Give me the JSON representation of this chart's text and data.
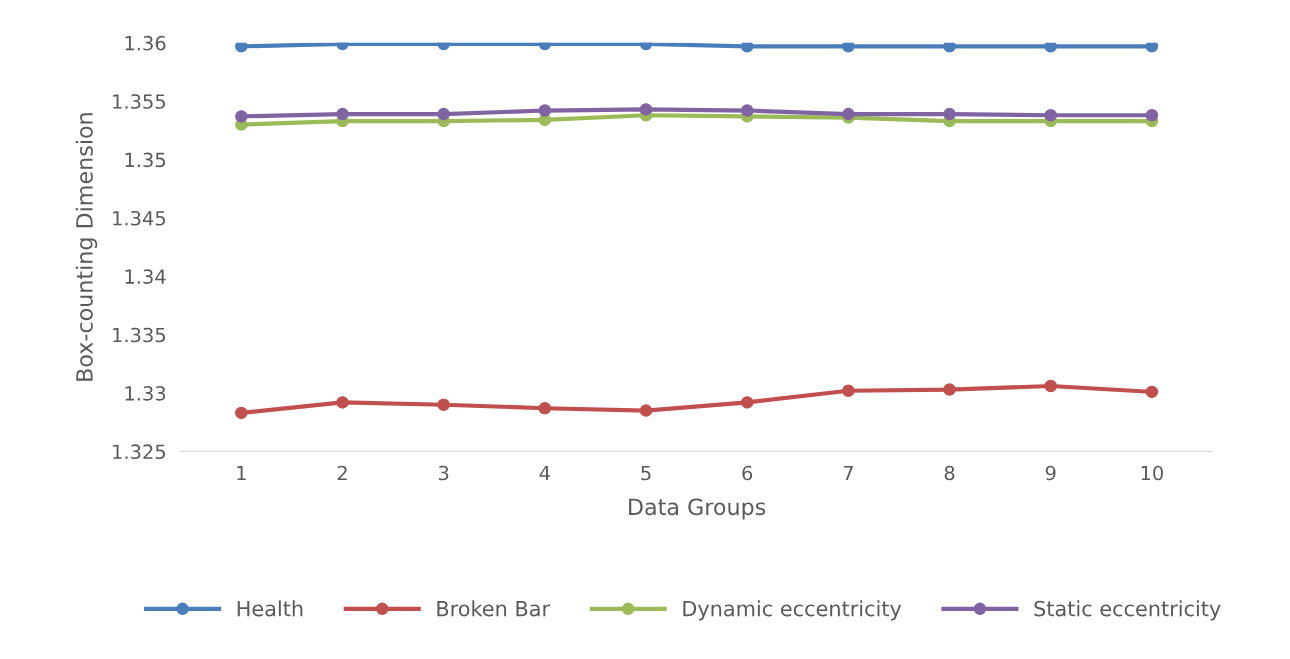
{
  "chart_data": {
    "type": "line",
    "xlabel": "Data Groups",
    "ylabel": "Box-counting Dimension",
    "categories": [
      "1",
      "2",
      "3",
      "4",
      "5",
      "6",
      "7",
      "8",
      "9",
      "10"
    ],
    "series": [
      {
        "name": "Health",
        "color": "#4a7ebb",
        "values": [
          1.3597,
          1.3599,
          1.3599,
          1.3599,
          1.3599,
          1.3597,
          1.3597,
          1.3597,
          1.3597,
          1.3597
        ]
      },
      {
        "name": "Broken Bar",
        "color": "#c0504d",
        "values": [
          1.3283,
          1.3292,
          1.329,
          1.3287,
          1.3285,
          1.3292,
          1.3302,
          1.3303,
          1.3306,
          1.3301
        ]
      },
      {
        "name": "Dynamic eccentricity",
        "color": "#9bbb59",
        "values": [
          1.353,
          1.3533,
          1.3533,
          1.3534,
          1.3538,
          1.3537,
          1.3536,
          1.3533,
          1.3533,
          1.3533
        ]
      },
      {
        "name": "Static eccentricity",
        "color": "#8064a2",
        "values": [
          1.3537,
          1.3539,
          1.3539,
          1.3542,
          1.3543,
          1.3542,
          1.3539,
          1.3539,
          1.3538,
          1.3538
        ]
      }
    ],
    "ylim": [
      1.325,
      1.36
    ],
    "yticks": [
      1.325,
      1.33,
      1.335,
      1.34,
      1.345,
      1.35,
      1.355,
      1.36
    ],
    "grid": false,
    "legend": "bottom",
    "marker": "circle",
    "line_style": "solid"
  }
}
